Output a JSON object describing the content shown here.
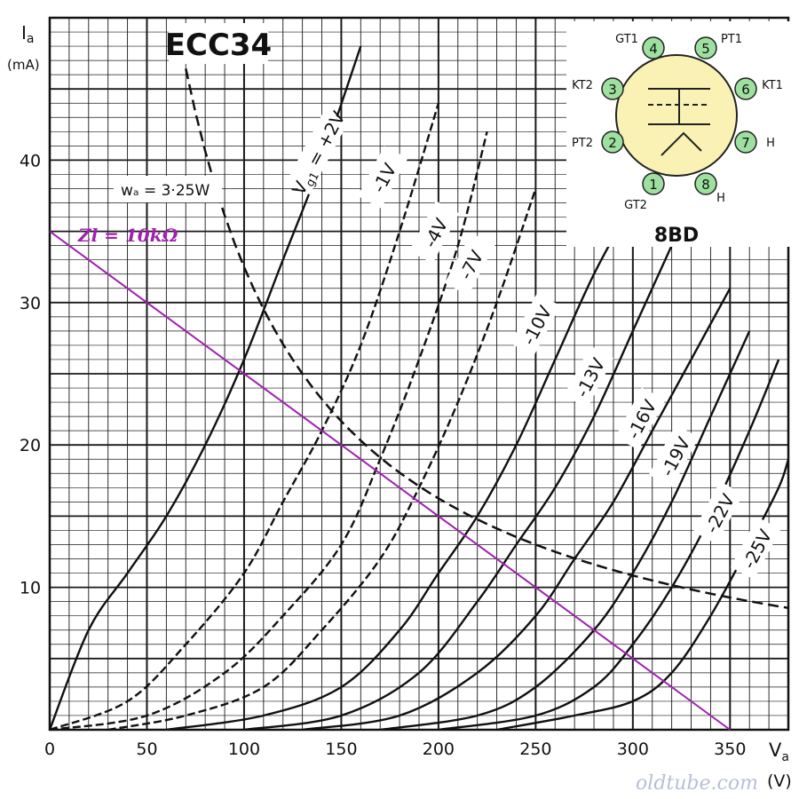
{
  "chart_data": {
    "type": "line",
    "title": "ECC34",
    "xlabel_main": "V",
    "xlabel_sub": "a",
    "xunit": "(V)",
    "ylabel_main": "I",
    "ylabel_sub": "a",
    "yunit": "(mA)",
    "xlim": [
      0,
      380
    ],
    "ylim": [
      0,
      50
    ],
    "x_ticks": [
      0,
      50,
      100,
      150,
      200,
      250,
      300,
      350
    ],
    "y_ticks": [
      10,
      20,
      30,
      40
    ],
    "grid": true,
    "series": [
      {
        "name": "Vg1 = +2V",
        "label_text": "V",
        "label_sub": "g1",
        "label_rest": " = +2V",
        "points": [
          [
            0,
            0
          ],
          [
            20,
            7
          ],
          [
            40,
            11
          ],
          [
            60,
            15
          ],
          [
            80,
            20
          ],
          [
            100,
            26
          ],
          [
            120,
            33
          ],
          [
            140,
            40
          ],
          [
            160,
            48
          ]
        ]
      },
      {
        "name": "-1V",
        "label_text": "-1V",
        "points": [
          [
            0,
            0
          ],
          [
            40,
            2
          ],
          [
            70,
            6
          ],
          [
            100,
            11
          ],
          [
            120,
            16
          ],
          [
            140,
            21
          ],
          [
            160,
            27
          ],
          [
            180,
            35
          ],
          [
            200,
            44
          ]
        ]
      },
      {
        "name": "-4V",
        "label_text": "-4V",
        "points": [
          [
            0,
            0
          ],
          [
            50,
            1
          ],
          [
            90,
            4
          ],
          [
            120,
            8
          ],
          [
            150,
            13
          ],
          [
            170,
            19
          ],
          [
            190,
            26
          ],
          [
            210,
            34
          ],
          [
            225,
            42
          ]
        ]
      },
      {
        "name": "-7V",
        "label_text": "-7V",
        "points": [
          [
            30,
            0
          ],
          [
            70,
            1
          ],
          [
            110,
            3
          ],
          [
            140,
            7
          ],
          [
            170,
            12
          ],
          [
            190,
            17
          ],
          [
            210,
            23
          ],
          [
            230,
            30
          ],
          [
            250,
            38
          ]
        ]
      },
      {
        "name": "-10V",
        "label_text": "-10V",
        "points": [
          [
            60,
            0
          ],
          [
            110,
            1
          ],
          [
            150,
            3
          ],
          [
            180,
            7
          ],
          [
            200,
            11
          ],
          [
            220,
            15
          ],
          [
            240,
            20
          ],
          [
            260,
            26
          ],
          [
            280,
            32
          ],
          [
            300,
            37
          ]
        ]
      },
      {
        "name": "-13V",
        "label_text": "-13V",
        "points": [
          [
            100,
            0
          ],
          [
            150,
            1
          ],
          [
            190,
            4
          ],
          [
            220,
            9
          ],
          [
            240,
            13
          ],
          [
            260,
            17
          ],
          [
            280,
            22
          ],
          [
            300,
            28
          ],
          [
            320,
            34
          ]
        ]
      },
      {
        "name": "-16V",
        "label_text": "-16V",
        "points": [
          [
            130,
            0
          ],
          [
            180,
            1
          ],
          [
            220,
            4
          ],
          [
            250,
            8
          ],
          [
            270,
            12
          ],
          [
            290,
            16
          ],
          [
            310,
            21
          ],
          [
            330,
            26
          ],
          [
            350,
            31
          ]
        ]
      },
      {
        "name": "-19V",
        "label_text": "-19V",
        "points": [
          [
            170,
            0
          ],
          [
            220,
            1
          ],
          [
            250,
            3
          ],
          [
            280,
            7
          ],
          [
            300,
            11
          ],
          [
            320,
            16
          ],
          [
            340,
            22
          ],
          [
            360,
            28
          ]
        ]
      },
      {
        "name": "-22V",
        "label_text": "-22V",
        "points": [
          [
            200,
            0
          ],
          [
            250,
            1
          ],
          [
            280,
            3
          ],
          [
            300,
            6
          ],
          [
            320,
            10
          ],
          [
            340,
            15
          ],
          [
            360,
            21
          ],
          [
            375,
            26
          ]
        ]
      },
      {
        "name": "-25V",
        "label_text": "-25V",
        "points": [
          [
            230,
            0
          ],
          [
            270,
            1
          ],
          [
            300,
            2
          ],
          [
            320,
            4
          ],
          [
            340,
            8
          ],
          [
            360,
            13
          ],
          [
            375,
            17
          ],
          [
            380,
            19
          ]
        ]
      }
    ],
    "power_curve": {
      "label": "wₐ = 3·25W",
      "watts": 3.25,
      "x_from": 70,
      "x_to": 380
    },
    "load_line": {
      "label": "Zl = 10kΩ",
      "points": [
        [
          0,
          35
        ],
        [
          350,
          0
        ]
      ],
      "color": "#a020b0"
    },
    "inset": {
      "base_label": "8BD",
      "pins": [
        {
          "num": "1",
          "name": "GT2"
        },
        {
          "num": "2",
          "name": "PT2"
        },
        {
          "num": "3",
          "name": "KT2"
        },
        {
          "num": "4",
          "name": "GT1"
        },
        {
          "num": "5",
          "name": "PT1"
        },
        {
          "num": "6",
          "name": "KT1"
        },
        {
          "num": "7",
          "name": "H"
        },
        {
          "num": "8",
          "name": "H"
        }
      ]
    },
    "watermark": "oldtube.com"
  }
}
